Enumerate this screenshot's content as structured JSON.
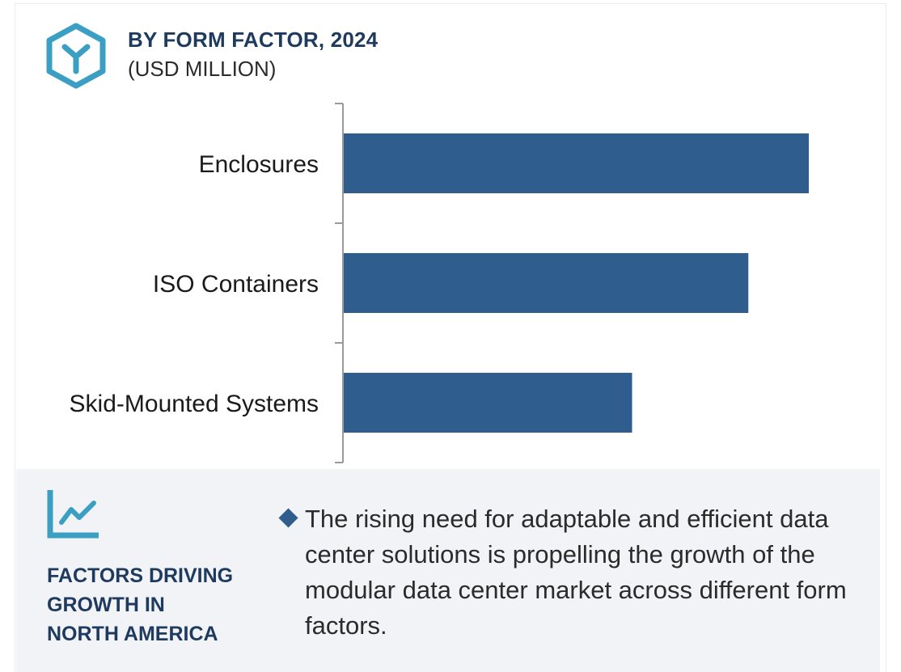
{
  "header": {
    "title": "BY FORM FACTOR, 2024",
    "subtitle": "(USD MILLION)",
    "icon": "hexagon-y-logo-icon",
    "accent_color": "#3b9fc4"
  },
  "chart_data": {
    "type": "bar",
    "orientation": "horizontal",
    "title": "BY FORM FACTOR, 2024",
    "subtitle": "(USD MILLION)",
    "categories": [
      "Enclosures",
      "ISO Containers",
      "Skid-Mounted Systems"
    ],
    "values": [
      100,
      87,
      62
    ],
    "value_units": "relative (no axis values shown)",
    "xlabel": "",
    "ylabel": "",
    "xlim": [
      0,
      100
    ],
    "bar_color": "#2e5d8e",
    "grid": false,
    "legend": "none"
  },
  "panel": {
    "icon": "trend-line-chart-icon",
    "heading_lines": [
      "FACTORS DRIVING",
      "GROWTH IN",
      "NORTH AMERICA"
    ],
    "bullet_icon": "diamond-bullet-icon",
    "bullet_text": "The rising need for adaptable and efficient data center solutions is propelling the growth of the modular data center market across different form factors."
  }
}
